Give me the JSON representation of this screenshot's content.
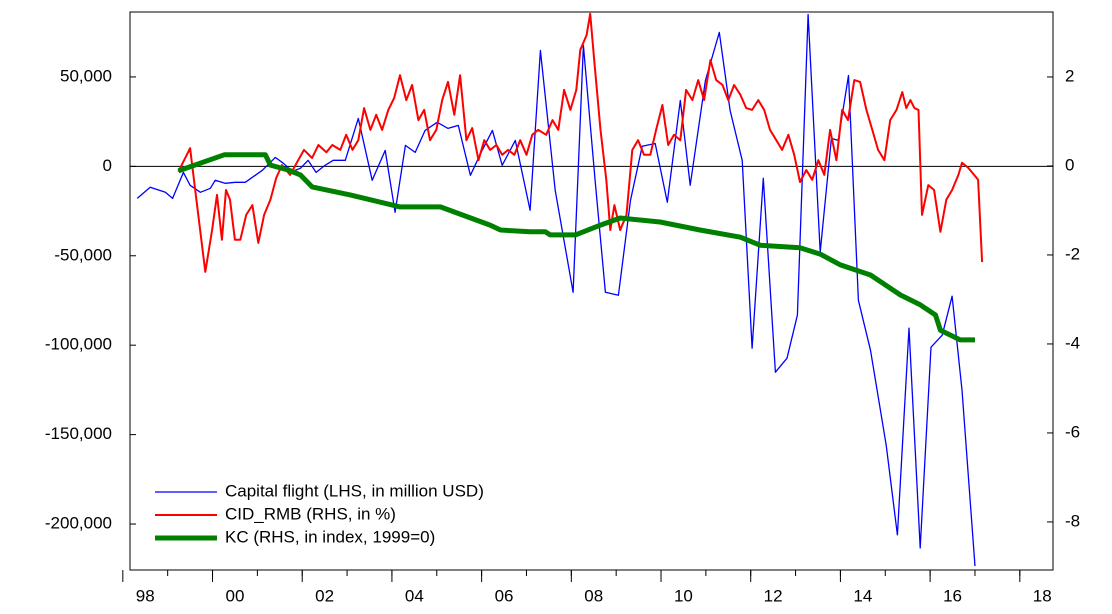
{
  "chart_data": {
    "type": "line",
    "xlim": [
      1998.16,
      2018.74
    ],
    "ylim": [
      -225700,
      86300
    ],
    "y2lim": [
      -9.08,
      3.46
    ],
    "zero_line": true,
    "legend": "lower left",
    "xticks": [
      {
        "value": 1998,
        "label": "98"
      },
      {
        "value": 2000,
        "label": "00"
      },
      {
        "value": 2002,
        "label": "02"
      },
      {
        "value": 2004,
        "label": "04"
      },
      {
        "value": 2006,
        "label": "06"
      },
      {
        "value": 2008,
        "label": "08"
      },
      {
        "value": 2010,
        "label": "10"
      },
      {
        "value": 2012,
        "label": "12"
      },
      {
        "value": 2014,
        "label": "14"
      },
      {
        "value": 2016,
        "label": "16"
      },
      {
        "value": 2018,
        "label": "18"
      }
    ],
    "yticks": [
      {
        "value": 50000,
        "label": "50,000"
      },
      0,
      {
        "value": -50000,
        "label": "-50,000"
      },
      {
        "value": -100000,
        "label": "-100,000"
      },
      {
        "value": -150000,
        "label": "-150,000"
      },
      {
        "value": -200000,
        "label": "-200,000"
      }
    ],
    "y2ticks": [
      2,
      0,
      -2,
      -4,
      -6,
      -8
    ],
    "series": [
      {
        "name": "Capital flight (LHS, in million USD)",
        "color": "#0000ff",
        "axis": "y",
        "x": [
          1998.32,
          1998.61,
          1998.95,
          1999.11,
          1999.35,
          1999.5,
          1999.73,
          1999.95,
          2000.06,
          2000.28,
          2000.51,
          2000.73,
          2001.11,
          2001.4,
          2001.58,
          2001.78,
          2001.96,
          2002.13,
          2002.31,
          2002.51,
          2002.69,
          2002.96,
          2003.25,
          2003.56,
          2003.85,
          2004.07,
          2004.3,
          2004.52,
          2004.74,
          2005.01,
          2005.25,
          2005.48,
          2005.75,
          2006.01,
          2006.24,
          2006.46,
          2006.75,
          2007.08,
          2007.31,
          2007.64,
          2008.04,
          2008.27,
          2008.53,
          2008.76,
          2009.05,
          2009.32,
          2009.58,
          2009.87,
          2010.14,
          2010.43,
          2010.65,
          2010.99,
          2011.3,
          2011.54,
          2011.81,
          2012.03,
          2012.28,
          2012.55,
          2012.81,
          2013.04,
          2013.28,
          2013.55,
          2013.8,
          2013.95,
          2014.18,
          2014.4,
          2014.67,
          2015.02,
          2015.27,
          2015.53,
          2015.78,
          2016.02,
          2016.27,
          2016.49,
          2016.71,
          2017.0
        ],
        "values": [
          -17900,
          -11700,
          -14500,
          -17900,
          -3400,
          -10600,
          -14500,
          -12300,
          -7800,
          -9500,
          -8900,
          -8900,
          -2200,
          5000,
          1700,
          -2800,
          -1100,
          3400,
          -3400,
          600,
          3400,
          3400,
          26800,
          -7800,
          8900,
          -25700,
          11700,
          7800,
          20100,
          24600,
          21200,
          22900,
          -5000,
          8900,
          20100,
          600,
          14500,
          -24600,
          64800,
          -13400,
          -70400,
          67600,
          -7800,
          -70400,
          -72100,
          -19000,
          11200,
          12800,
          -20100,
          36900,
          -10600,
          48000,
          74900,
          31300,
          3400,
          -101700,
          -6700,
          -115100,
          -107300,
          -83200,
          84900,
          -48000,
          15600,
          14500,
          50800,
          -74900,
          -102800,
          -155900,
          -206100,
          -90500,
          -213400,
          -101100,
          -94400,
          -72600,
          -125100,
          -223500
        ]
      },
      {
        "name": "CID_RMB (RHS, in %)",
        "color": "#ff0000",
        "axis": "y2",
        "x": [
          1999.24,
          1999.5,
          1999.64,
          1999.84,
          1999.99,
          2000.1,
          2000.21,
          2000.3,
          2000.39,
          2000.5,
          2000.62,
          2000.75,
          2000.89,
          2001.02,
          2001.15,
          2001.29,
          2001.42,
          2001.55,
          2001.73,
          2001.91,
          2002.04,
          2002.22,
          2002.36,
          2002.54,
          2002.67,
          2002.85,
          2002.98,
          2003.12,
          2003.25,
          2003.38,
          2003.52,
          2003.65,
          2003.78,
          2003.92,
          2004.05,
          2004.18,
          2004.32,
          2004.45,
          2004.59,
          2004.72,
          2004.85,
          2004.99,
          2005.12,
          2005.25,
          2005.39,
          2005.52,
          2005.66,
          2005.79,
          2005.93,
          2006.06,
          2006.19,
          2006.33,
          2006.46,
          2006.59,
          2006.73,
          2006.86,
          2007.0,
          2007.13,
          2007.26,
          2007.44,
          2007.58,
          2007.71,
          2007.84,
          2007.98,
          2008.11,
          2008.2,
          2008.34,
          2008.42,
          2008.51,
          2008.65,
          2008.78,
          2008.87,
          2008.96,
          2009.09,
          2009.23,
          2009.36,
          2009.49,
          2009.62,
          2009.76,
          2009.89,
          2010.03,
          2010.16,
          2010.29,
          2010.43,
          2010.56,
          2010.7,
          2010.83,
          2010.96,
          2011.1,
          2011.23,
          2011.37,
          2011.5,
          2011.63,
          2011.77,
          2011.9,
          2012.03,
          2012.17,
          2012.3,
          2012.43,
          2012.57,
          2012.7,
          2012.84,
          2012.97,
          2013.1,
          2013.24,
          2013.37,
          2013.51,
          2013.64,
          2013.77,
          2013.91,
          2014.04,
          2014.17,
          2014.31,
          2014.44,
          2014.58,
          2014.71,
          2014.84,
          2014.98,
          2015.11,
          2015.25,
          2015.38,
          2015.47,
          2015.56,
          2015.65,
          2015.74,
          2015.82,
          2015.96,
          2016.09,
          2016.23,
          2016.36,
          2016.49,
          2016.63,
          2016.71,
          2016.85,
          2016.98,
          2017.07,
          2017.16
        ],
        "values": [
          -0.13,
          0.4,
          -0.76,
          -2.38,
          -1.44,
          -0.65,
          -1.66,
          -0.54,
          -0.76,
          -1.66,
          -1.66,
          -1.1,
          -0.88,
          -1.73,
          -1.1,
          -0.76,
          -0.27,
          0.02,
          -0.2,
          0.13,
          0.36,
          0.18,
          0.47,
          0.31,
          0.47,
          0.36,
          0.7,
          0.36,
          0.58,
          1.3,
          0.81,
          1.15,
          0.81,
          1.26,
          1.53,
          2.04,
          1.48,
          1.82,
          1.03,
          1.26,
          0.58,
          0.81,
          1.48,
          1.89,
          1.15,
          2.04,
          0.58,
          0.85,
          0.13,
          0.58,
          0.36,
          0.47,
          0.25,
          0.36,
          0.25,
          0.58,
          0.25,
          0.7,
          0.81,
          0.7,
          1.03,
          0.81,
          1.71,
          1.26,
          1.71,
          2.61,
          2.94,
          3.42,
          2.38,
          0.81,
          -0.31,
          -1.44,
          -0.88,
          -1.44,
          -1.1,
          0.36,
          0.58,
          0.25,
          0.25,
          0.81,
          1.37,
          0.47,
          0.7,
          0.58,
          1.71,
          1.48,
          1.93,
          1.48,
          2.38,
          1.93,
          1.82,
          1.48,
          1.82,
          1.6,
          1.3,
          1.26,
          1.48,
          1.26,
          0.81,
          0.58,
          0.36,
          0.7,
          0.25,
          -0.36,
          -0.09,
          -0.31,
          0.13,
          -0.2,
          0.81,
          0.13,
          1.26,
          1.03,
          1.93,
          1.89,
          1.26,
          0.81,
          0.36,
          0.13,
          1.03,
          1.26,
          1.66,
          1.3,
          1.48,
          1.3,
          1.26,
          -1.1,
          -0.43,
          -0.54,
          -1.48,
          -0.76,
          -0.54,
          -0.2,
          0.07,
          -0.04,
          -0.2,
          -0.31,
          -2.16
        ]
      },
      {
        "name": "KC (RHS, in index, 1999=0)",
        "color": "#008000",
        "axis": "y2",
        "x": [
          1999.24,
          2000.26,
          2001.18,
          2001.29,
          2001.69,
          2001.96,
          2002.22,
          2003.07,
          2004.18,
          2005.08,
          2006.19,
          2006.42,
          2007.08,
          2007.42,
          2007.53,
          2008.09,
          2008.65,
          2009.09,
          2009.98,
          2010.87,
          2011.77,
          2012.21,
          2013.1,
          2013.55,
          2013.99,
          2014.67,
          2015.34,
          2015.78,
          2016.12,
          2016.23,
          2016.67,
          2017.0
        ],
        "values": [
          -0.11,
          0.25,
          0.25,
          0.02,
          -0.09,
          -0.2,
          -0.47,
          -0.65,
          -0.92,
          -0.92,
          -1.33,
          -1.44,
          -1.48,
          -1.48,
          -1.55,
          -1.55,
          -1.33,
          -1.17,
          -1.26,
          -1.44,
          -1.6,
          -1.78,
          -1.84,
          -1.98,
          -2.22,
          -2.45,
          -2.9,
          -3.12,
          -3.35,
          -3.69,
          -3.91,
          -3.91
        ]
      }
    ]
  }
}
